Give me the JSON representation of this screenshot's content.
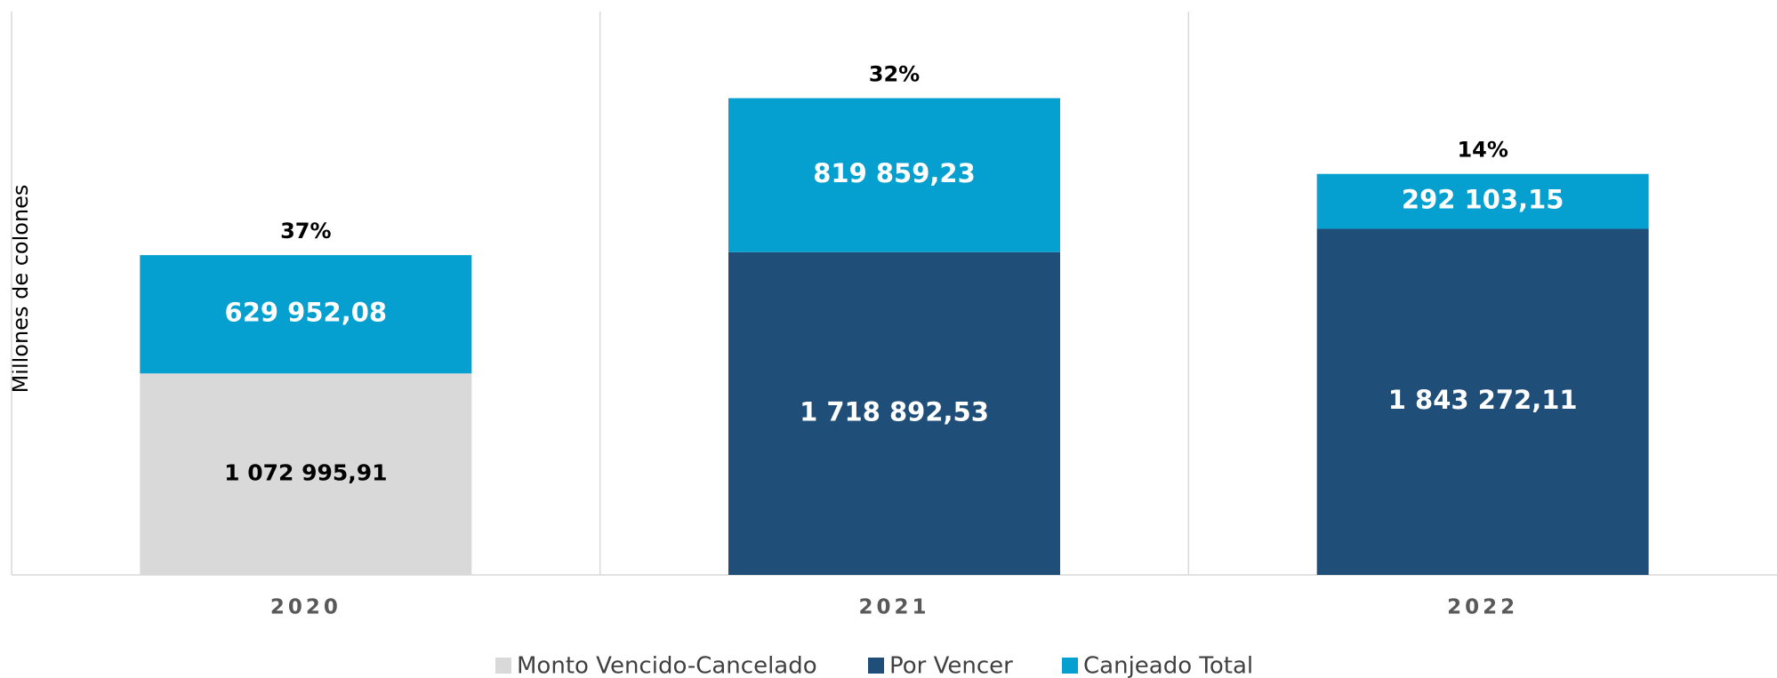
{
  "chart_data": {
    "type": "stacked_bar",
    "y_label": "Millones de colones",
    "categories": [
      "2020",
      "2021",
      "2022"
    ],
    "series": [
      {
        "name": "Monto Vencido-Cancelado",
        "color": "#d9d9d9",
        "values": [
          1072995.91,
          null,
          null
        ],
        "value_labels": [
          "1 072 995,91",
          null,
          null
        ]
      },
      {
        "name": "Por Vencer",
        "color": "#1f4e79",
        "values": [
          null,
          1718892.53,
          1843272.11
        ],
        "value_labels": [
          null,
          "1 718 892,53",
          "1 843 272,11"
        ]
      },
      {
        "name": "Canjeado Total",
        "color": "#05a0cf",
        "values": [
          629952.08,
          819859.23,
          292103.15
        ],
        "value_labels": [
          "629 952,08",
          "819 859,23",
          "292 103,15"
        ]
      }
    ],
    "share_labels": {
      "values": [
        37,
        32,
        14
      ],
      "value_labels": [
        "37%",
        "32%",
        "14%"
      ]
    },
    "ylim": [
      0,
      3000000
    ],
    "legend": "bottom"
  }
}
